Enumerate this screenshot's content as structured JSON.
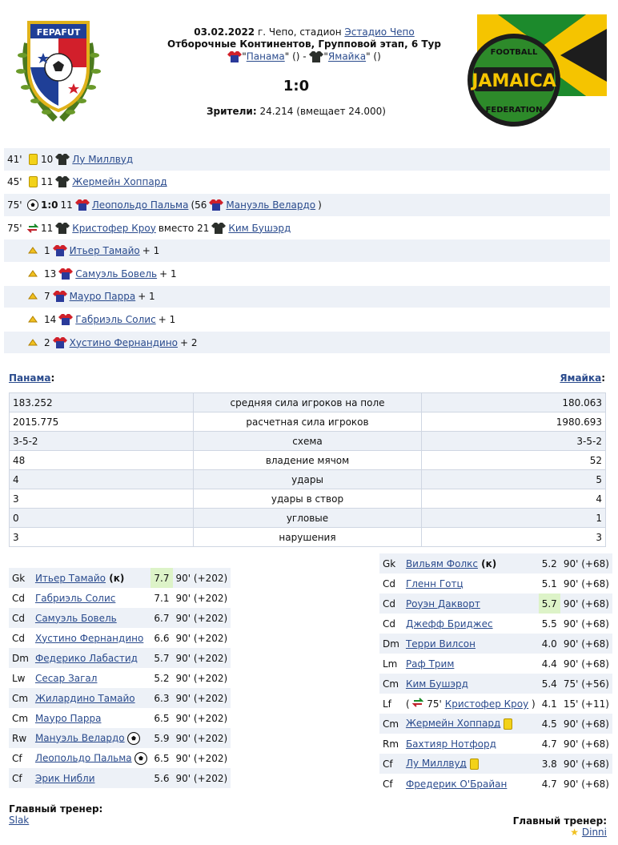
{
  "match": {
    "date": "03.02.2022",
    "place": " г. Чепо, стадион ",
    "stadium": "Эстадио Чепо",
    "competition": "Отборочные Континентов, Групповой этап, 6 Тур",
    "home_team": "Панама",
    "away_team": "Ямайка",
    "home_suffix": "\" () - ",
    "away_suffix": "\" ()",
    "quote_open": "\"",
    "score": "1:0",
    "spectators_label": "Зрители:",
    "spectators_value": " 24.214 (вмещает 24.000)"
  },
  "logos": {
    "left_text": "FEPAFUT",
    "right_text_top": "FOOTBALL",
    "right_text_mid": "JAMAICA",
    "right_text_bottom": "FEDERATION"
  },
  "colors": {
    "link": "#2a4b8d",
    "row_alt": "#edf1f7",
    "best_rating": "#ddf3c8",
    "yellow_card": "#f3d219",
    "panama_shirt_red": "#d0202a",
    "panama_shirt_blue": "#2a3a9a",
    "jamaica_shirt": "#2b2f2b"
  },
  "events": [
    {
      "minute": "41'",
      "type": "yellow-card",
      "number": "10",
      "team": "jamaica",
      "player": "Лу Миллвуд"
    },
    {
      "minute": "45'",
      "type": "yellow-card",
      "number": "11",
      "team": "jamaica",
      "player": "Жермейн Хоппард"
    },
    {
      "minute": "75'",
      "type": "goal",
      "score": "1:0",
      "number": "11",
      "team": "panama",
      "player": "Леопольдо Пальма",
      "assist_prefix": "(56",
      "assist": "Мануэль Велардо",
      "assist_suffix": ")"
    },
    {
      "minute": "75'",
      "type": "substitution",
      "number": "11",
      "team": "jamaica",
      "player": "Кристофер Кроу",
      "between": "вместо 21",
      "player2": "Ким Бушэрд"
    },
    {
      "number": "1",
      "player": "Итьер Тамайо",
      "bonus": "+ 1"
    },
    {
      "number": "13",
      "player": "Самуэль Бовель",
      "bonus": "+ 1"
    },
    {
      "number": "7",
      "player": "Мауро Парра",
      "bonus": "+ 1"
    },
    {
      "number": "14",
      "player": "Габриэль Солис",
      "bonus": "+ 1"
    },
    {
      "number": "2",
      "player": "Хустино Фернандино",
      "bonus": "+ 2"
    }
  ],
  "team_headers": {
    "left": "Панама",
    "right": "Ямайка",
    "colon": ":"
  },
  "stats": [
    {
      "home": "183.252",
      "label": "средняя сила игроков на поле",
      "away": "180.063"
    },
    {
      "home": "2015.775",
      "label": "расчетная сила игроков",
      "away": "1980.693"
    },
    {
      "home": "3-5-2",
      "label": "схема",
      "away": "3-5-2"
    },
    {
      "home": "48",
      "label": "владение мячом",
      "away": "52"
    },
    {
      "home": "4",
      "label": "удары",
      "away": "5"
    },
    {
      "home": "3",
      "label": "удары в створ",
      "away": "4"
    },
    {
      "home": "0",
      "label": "угловые",
      "away": "1"
    },
    {
      "home": "3",
      "label": "нарушения",
      "away": "3"
    }
  ],
  "lineup_home": [
    {
      "pos": "Gk",
      "name": "Итьер Тамайо",
      "extra": " (к)",
      "rating": "7.7",
      "time": "90' (+202)",
      "best": true
    },
    {
      "pos": "Cd",
      "name": "Габриэль Солис",
      "rating": "7.1",
      "time": "90' (+202)"
    },
    {
      "pos": "Cd",
      "name": "Самуэль Бовель",
      "rating": "6.7",
      "time": "90' (+202)"
    },
    {
      "pos": "Cd",
      "name": "Хустино Фернандино",
      "rating": "6.6",
      "time": "90' (+202)"
    },
    {
      "pos": "Dm",
      "name": "Федерико Лабастид",
      "rating": "5.7",
      "time": "90' (+202)"
    },
    {
      "pos": "Lw",
      "name": "Сесар Загал",
      "rating": "5.2",
      "time": "90' (+202)"
    },
    {
      "pos": "Cm",
      "name": "Жилардино Тамайо",
      "rating": "6.3",
      "time": "90' (+202)"
    },
    {
      "pos": "Cm",
      "name": "Мауро Парра",
      "rating": "6.5",
      "time": "90' (+202)"
    },
    {
      "pos": "Rw",
      "name": "Мануэль Велардо",
      "rating": "5.9",
      "time": "90' (+202)",
      "icon": "ball"
    },
    {
      "pos": "Cf",
      "name": "Леопольдо Пальма",
      "rating": "6.5",
      "time": "90' (+202)",
      "icon": "ball"
    },
    {
      "pos": "Cf",
      "name": "Эрик Нибли",
      "rating": "5.6",
      "time": "90' (+202)"
    }
  ],
  "lineup_away": [
    {
      "pos": "Gk",
      "name": "Вильям Фолкс",
      "extra": " (к)",
      "rating": "5.2",
      "time": "90' (+68)"
    },
    {
      "pos": "Cd",
      "name": "Гленн Готц",
      "rating": "5.1",
      "time": "90' (+68)"
    },
    {
      "pos": "Cd",
      "name": "Роуэн Дакворт",
      "rating": "5.7",
      "time": "90' (+68)",
      "best": true
    },
    {
      "pos": "Cd",
      "name": "Джефф Бриджес",
      "rating": "5.5",
      "time": "90' (+68)"
    },
    {
      "pos": "Dm",
      "name": "Терри Вилсон",
      "rating": "4.0",
      "time": "90' (+68)"
    },
    {
      "pos": "Lm",
      "name": "Раф Трим",
      "rating": "4.4",
      "time": "90' (+68)"
    },
    {
      "pos": "Cm",
      "name": "Ким Бушэрд",
      "rating": "5.4",
      "time": "75' (+56)"
    },
    {
      "pos": "Lf",
      "name": "Кристофер Кроу",
      "prefix": "(",
      "subminute": "75'",
      "suffix": ")",
      "rating": "4.1",
      "time": "15' (+11)",
      "icon": "sub"
    },
    {
      "pos": "Cm",
      "name": "Жермейн Хоппард",
      "rating": "4.5",
      "time": "90' (+68)",
      "icon": "card"
    },
    {
      "pos": "Rm",
      "name": "Бахтияр Нотфорд",
      "rating": "4.7",
      "time": "90' (+68)"
    },
    {
      "pos": "Cf",
      "name": "Лу Миллвуд",
      "rating": "3.8",
      "time": "90' (+68)",
      "icon": "card"
    },
    {
      "pos": "Cf",
      "name": "Фредерик О'Брайан",
      "rating": "4.7",
      "time": "90' (+68)"
    }
  ],
  "coach_home": {
    "label": "Главный тренер:",
    "name": "Slak"
  },
  "coach_away": {
    "label": "Главный тренер:",
    "name": "Dinni"
  }
}
